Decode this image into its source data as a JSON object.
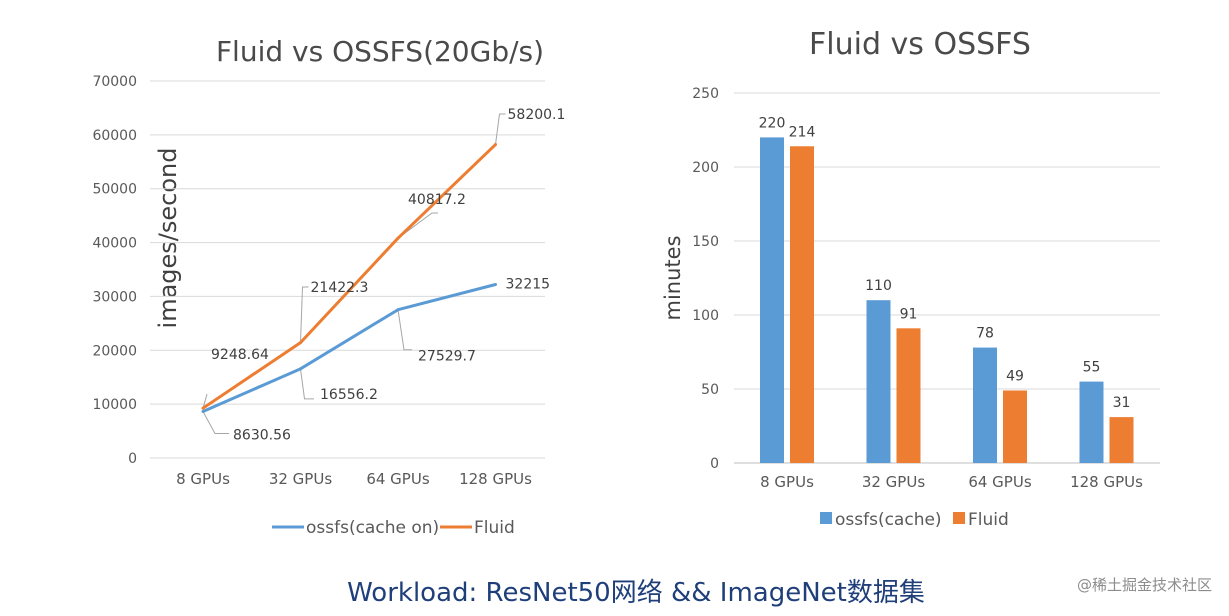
{
  "chart_data": [
    {
      "type": "line",
      "title": "Fluid vs OSSFS(20Gb/s)",
      "xlabel": "",
      "ylabel": "images/second",
      "categories": [
        "8 GPUs",
        "32 GPUs",
        "64 GPUs",
        "128 GPUs"
      ],
      "ylim": [
        0,
        70000
      ],
      "yticks": [
        "0",
        "10000",
        "20000",
        "30000",
        "40000",
        "50000",
        "60000",
        "70000"
      ],
      "grid": true,
      "legend_position": "bottom",
      "series": [
        {
          "name": "ossfs(cache on)",
          "color": "#5b9bd5",
          "values": [
            8630.56,
            16556.2,
            27529.7,
            32215
          ],
          "labels": [
            "8630.56",
            "16556.2",
            "27529.7",
            "32215"
          ]
        },
        {
          "name": "Fluid",
          "color": "#ed7d31",
          "values": [
            9248.64,
            21422.3,
            40817.2,
            58200.1
          ],
          "labels": [
            "9248.64",
            "21422.3",
            "40817.2",
            "58200.1"
          ]
        }
      ]
    },
    {
      "type": "bar",
      "title": "Fluid vs OSSFS",
      "xlabel": "",
      "ylabel": "minutes",
      "categories": [
        "8 GPUs",
        "32 GPUs",
        "64 GPUs",
        "128 GPUs"
      ],
      "ylim": [
        0,
        250
      ],
      "yticks": [
        "0",
        "50",
        "100",
        "150",
        "200",
        "250"
      ],
      "grid": true,
      "legend_position": "bottom",
      "series": [
        {
          "name": "ossfs(cache)",
          "color": "#5b9bd5",
          "values": [
            220,
            110,
            78,
            55
          ]
        },
        {
          "name": "Fluid",
          "color": "#ed7d31",
          "values": [
            214,
            91,
            49,
            31
          ]
        }
      ]
    }
  ],
  "footer": "Workload: ResNet50网络 && ImageNet数据集",
  "watermark": "@稀土掘金技术社区"
}
